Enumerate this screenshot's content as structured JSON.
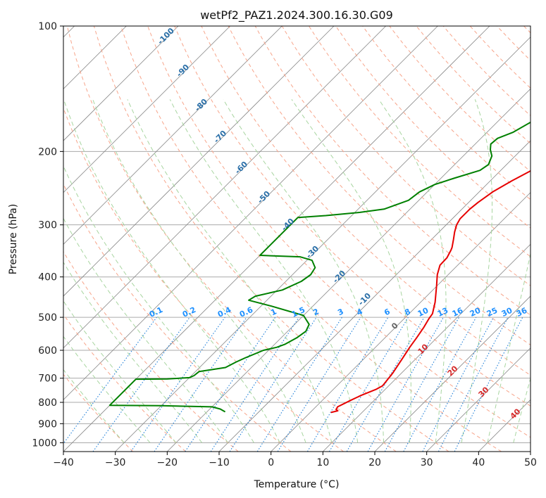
{
  "chart_data": {
    "type": "line",
    "title": "wetPf2_PAZ1.2024.300.16.30.G09",
    "xlabel": "Temperature (°C)",
    "ylabel": "Pressure (hPa)",
    "xlim": [
      -40,
      50
    ],
    "ylim": [
      100,
      1050
    ],
    "yscale": "log",
    "grid": true,
    "x_ticks": [
      -40,
      -30,
      -20,
      -10,
      0,
      10,
      20,
      30,
      40,
      50
    ],
    "y_ticks": [
      100,
      200,
      300,
      400,
      500,
      600,
      700,
      800,
      900,
      1000
    ],
    "series": [
      {
        "role": "temperature",
        "color": "#e60000",
        "points": [
          [
            4.0,
            846
          ],
          [
            5.0,
            838
          ],
          [
            4.4,
            832
          ],
          [
            4.2,
            820
          ],
          [
            5.5,
            790
          ],
          [
            6.5,
            770
          ],
          [
            8.2,
            745
          ],
          [
            8.8,
            730
          ],
          [
            8.3,
            680
          ],
          [
            7.4,
            630
          ],
          [
            6.6,
            590
          ],
          [
            6.1,
            560
          ],
          [
            5.5,
            530
          ],
          [
            4.8,
            505
          ],
          [
            4.5,
            490
          ],
          [
            2.8,
            460
          ],
          [
            -0.1,
            420
          ],
          [
            -2.1,
            395
          ],
          [
            -3.4,
            375
          ],
          [
            -3.5,
            360
          ],
          [
            -4.2,
            345
          ],
          [
            -4.5,
            340
          ],
          [
            -5.8,
            325
          ],
          [
            -7.0,
            312
          ],
          [
            -8.0,
            300
          ],
          [
            -8.5,
            290
          ],
          [
            -8.5,
            275
          ],
          [
            -8.2,
            265
          ],
          [
            -7.4,
            250
          ],
          [
            -5.8,
            235
          ],
          [
            -3.8,
            220
          ],
          [
            -1.5,
            210
          ],
          [
            1.7,
            200
          ],
          [
            3.9,
            190
          ],
          [
            5.3,
            180
          ],
          [
            7.3,
            170
          ],
          [
            9.7,
            160
          ],
          [
            11.9,
            150
          ],
          [
            14.2,
            140
          ],
          [
            16.5,
            130
          ],
          [
            18.3,
            122
          ],
          [
            20.0,
            115
          ],
          [
            21.0,
            110
          ],
          [
            22.0,
            105
          ],
          [
            23.1,
            100
          ]
        ]
      },
      {
        "role": "dewpoint",
        "color": "#008000",
        "points": [
          [
            -16.5,
            843
          ],
          [
            -18.0,
            830
          ],
          [
            -20.0,
            820
          ],
          [
            -30.0,
            815
          ],
          [
            -40.0,
            813
          ],
          [
            -40.0,
            704
          ],
          [
            -34.0,
            703
          ],
          [
            -30.0,
            698
          ],
          [
            -29.5,
            690
          ],
          [
            -29.3,
            675
          ],
          [
            -25.0,
            660
          ],
          [
            -24.0,
            640
          ],
          [
            -23.0,
            625
          ],
          [
            -21.0,
            600
          ],
          [
            -19.0,
            590
          ],
          [
            -18.0,
            580
          ],
          [
            -17.0,
            560
          ],
          [
            -16.5,
            540
          ],
          [
            -17.2,
            520
          ],
          [
            -20.0,
            495
          ],
          [
            -28.0,
            470
          ],
          [
            -33.5,
            455
          ],
          [
            -33.0,
            445
          ],
          [
            -29.0,
            430
          ],
          [
            -27.0,
            410
          ],
          [
            -26.5,
            395
          ],
          [
            -27.0,
            380
          ],
          [
            -29.0,
            365
          ],
          [
            -32.0,
            358
          ],
          [
            -40.0,
            355
          ],
          [
            -40.0,
            288
          ],
          [
            -35.0,
            285
          ],
          [
            -29.0,
            280
          ],
          [
            -25.0,
            275
          ],
          [
            -22.0,
            262
          ],
          [
            -21.5,
            250
          ],
          [
            -20.0,
            240
          ],
          [
            -17.5,
            232
          ],
          [
            -14.0,
            222
          ],
          [
            -13.5,
            215
          ],
          [
            -14.5,
            205
          ],
          [
            -16.0,
            198
          ],
          [
            -17.0,
            192
          ],
          [
            -16.8,
            186
          ],
          [
            -15.0,
            180
          ],
          [
            -13.5,
            170
          ],
          [
            -12.0,
            160
          ],
          [
            -10.5,
            150
          ],
          [
            -8.0,
            140
          ],
          [
            -5.0,
            130
          ],
          [
            -1.0,
            120
          ],
          [
            1.0,
            112
          ],
          [
            2.5,
            106
          ],
          [
            3.0,
            100
          ]
        ]
      }
    ],
    "dry_adiabat_labels": [
      "-100",
      "-90",
      "-80",
      "-70",
      "-60",
      "-50",
      "-40",
      "-30",
      "-20",
      "-10"
    ],
    "mixing_ratio_labels": [
      "0.1",
      "0.2",
      "0.4",
      "0.6",
      "1",
      "1.5",
      "2",
      "3",
      "4",
      "6",
      "8",
      "10",
      "13",
      "16",
      "20",
      "25",
      "30",
      "36"
    ],
    "moist_adiabat_labels": [
      "0",
      "10",
      "20",
      "30",
      "40"
    ],
    "colors": {
      "isotherm": "#888888",
      "isobar": "#aaaaaa",
      "dry_adiabat": "#f7a58b",
      "moist_adiabat": "#a8d5a0",
      "mixing_ratio": "#1f7fd8",
      "label_blue": "#2a6fa8",
      "label_red": "#d62a2a",
      "label_mixing": "#1e90ff"
    }
  }
}
